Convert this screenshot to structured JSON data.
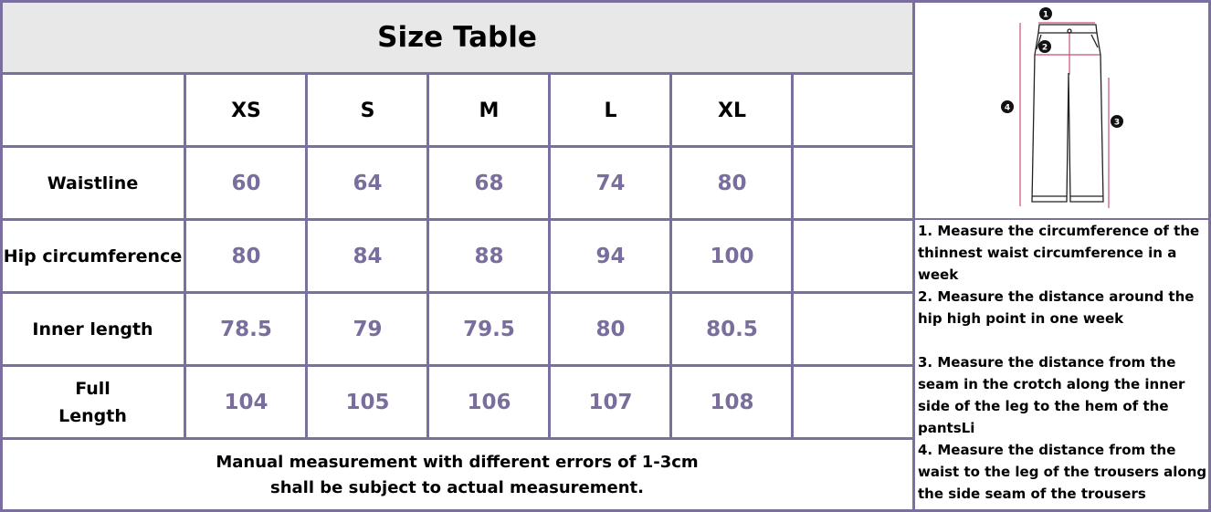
{
  "title": "Size Table",
  "sizes": [
    "XS",
    "S",
    "M",
    "L",
    "XL",
    ""
  ],
  "rows": [
    {
      "label": "Waistline",
      "values": [
        "60",
        "64",
        "68",
        "74",
        "80",
        ""
      ]
    },
    {
      "label": "Hip circumference",
      "values": [
        "80",
        "84",
        "88",
        "94",
        "100",
        ""
      ]
    },
    {
      "label": "Inner length",
      "values": [
        "78.5",
        "79",
        "79.5",
        "80",
        "80.5",
        ""
      ]
    },
    {
      "label": "Full Length",
      "values": [
        "104",
        "105",
        "106",
        "107",
        "108",
        ""
      ]
    }
  ],
  "footer": [
    "Manual measurement with different errors of 1-3cm",
    "shall be subject to actual measurement."
  ],
  "notes": [
    "1. Measure the circumference of the thinnest waist circumference in a week",
    "2. Measure the distance around the hip high point in one week",
    "3. Measure the distance from the seam in the crotch along the inner side of the leg to the hem of the pantsLi",
    "4. Measure the distance from the waist to the leg of the trousers along the side seam of the trousers"
  ],
  "diagram": {
    "markers": [
      "1",
      "2",
      "3",
      "4"
    ]
  },
  "colors": {
    "border": "#7b6fa0",
    "value": "#7a6e9e",
    "title_bg": "#e8e8e8",
    "measure_line": "#c94f7c"
  }
}
